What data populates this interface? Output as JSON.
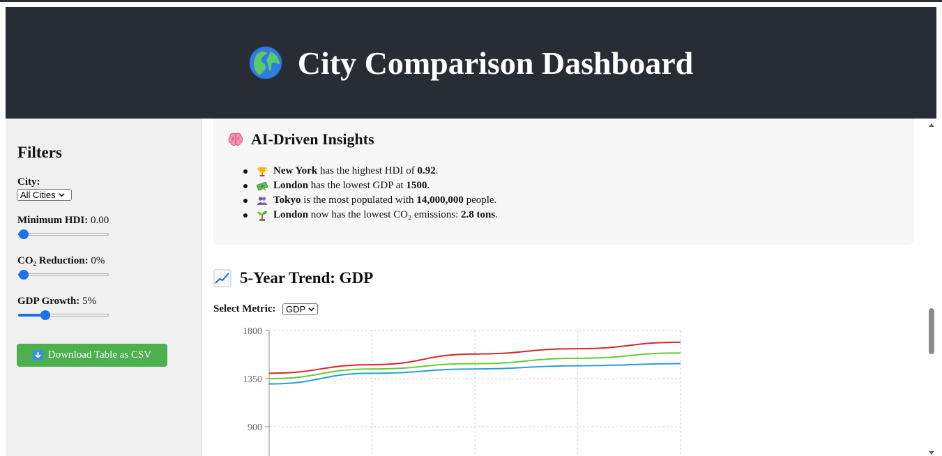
{
  "header": {
    "title": "City Comparison Dashboard",
    "icon": "globe-icon"
  },
  "sidebar": {
    "title": "Filters",
    "city": {
      "label": "City:",
      "value": "All Cities"
    },
    "hdi": {
      "label": "Minimum HDI:",
      "value": "0.00",
      "level": 0
    },
    "co2": {
      "label": "CO₂ Reduction:",
      "value": "0%",
      "level": 0
    },
    "gdp": {
      "label": "GDP Growth:",
      "value": "5%",
      "level": 0.27
    },
    "download": {
      "label": "Download Table as CSV",
      "icon": "down-arrow-icon"
    }
  },
  "insights": {
    "title": "AI-Driven Insights",
    "icon": "brain-icon",
    "items": [
      {
        "icon": "trophy-icon",
        "city": "New York",
        "text": " has the highest HDI of ",
        "value": "0.92",
        "suffix": "."
      },
      {
        "icon": "money-icon",
        "city": "London",
        "text": " has the lowest GDP at ",
        "value": "1500",
        "suffix": "."
      },
      {
        "icon": "people-icon",
        "city": "Tokyo",
        "text": " is the most populated with ",
        "value": "14,000,000",
        "suffix": " people."
      },
      {
        "icon": "seedling-icon",
        "city": "London",
        "text": " now has the lowest CO₂ emissions: ",
        "value": "2.8 tons",
        "suffix": "."
      }
    ]
  },
  "trend": {
    "title": "5-Year Trend: GDP",
    "icon": "chart-increasing-icon",
    "metric_label": "Select Metric:",
    "metric_value": "GDP"
  },
  "colors": {
    "header_bg": "#282c35",
    "sidebar_bg": "#f0f0f0",
    "button_green": "#4caf50",
    "accent_blue": "#1a73e8"
  },
  "chart_data": {
    "type": "line",
    "x": [
      0,
      1,
      2,
      3,
      4
    ],
    "yticks": [
      "1800",
      "1350",
      "900"
    ],
    "ylim": [
      900,
      1800
    ],
    "grid": true,
    "series": [
      {
        "color": "#d62728",
        "values": [
          1400,
          1480,
          1580,
          1630,
          1690
        ]
      },
      {
        "color": "#66cc33",
        "values": [
          1350,
          1440,
          1490,
          1540,
          1590
        ]
      },
      {
        "color": "#2b9cd8",
        "values": [
          1300,
          1400,
          1440,
          1470,
          1490
        ]
      }
    ]
  }
}
